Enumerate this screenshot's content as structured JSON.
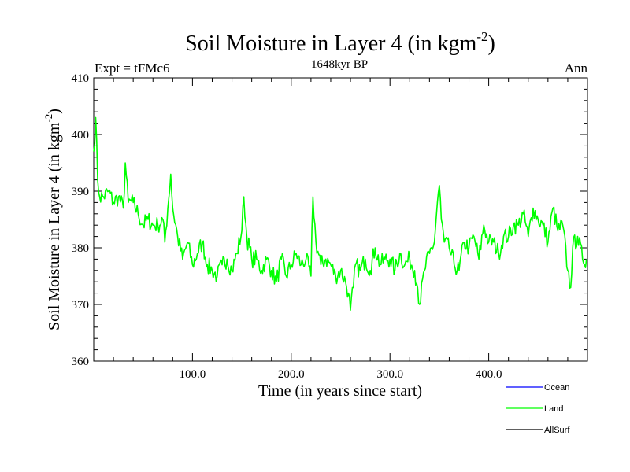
{
  "chart_data": {
    "type": "line",
    "title": "Soil Moisture in Layer 4 (in kgm",
    "title_sup": "-2",
    "title_close": ")",
    "subtitle_left": "Expt = tFMc6",
    "subtitle_center": "1648kyr BP",
    "subtitle_right": "Ann",
    "xlabel": "Time (in years since start)",
    "ylabel": "Soil Moisture in Layer 4 (in kgm",
    "ylabel_sup": "-2",
    "ylabel_close": ")",
    "xlim": [
      0,
      500
    ],
    "ylim": [
      360,
      410
    ],
    "x_ticks": [
      100,
      200,
      300,
      400
    ],
    "x_tick_labels": [
      "100.0",
      "200.0",
      "300.0",
      "400.0"
    ],
    "y_ticks": [
      360,
      370,
      380,
      390,
      400,
      410
    ],
    "y_tick_labels": [
      "360",
      "370",
      "380",
      "390",
      "400",
      "410"
    ],
    "legend": [
      {
        "name": "Ocean",
        "color": "#0000ff"
      },
      {
        "name": "Land",
        "color": "#00ff00"
      },
      {
        "name": "AllSurf",
        "color": "#000000"
      }
    ],
    "series": [
      {
        "name": "Land",
        "color": "#00ff00",
        "x": [
          0,
          2,
          4,
          6,
          10,
          15,
          20,
          25,
          30,
          32,
          35,
          40,
          45,
          50,
          55,
          60,
          65,
          70,
          72,
          75,
          78,
          80,
          85,
          90,
          95,
          100,
          105,
          110,
          115,
          120,
          125,
          130,
          135,
          140,
          145,
          150,
          152,
          155,
          160,
          165,
          170,
          175,
          180,
          185,
          190,
          195,
          200,
          205,
          210,
          215,
          220,
          222,
          225,
          230,
          235,
          240,
          245,
          250,
          255,
          258,
          260,
          263,
          265,
          270,
          275,
          280,
          285,
          290,
          295,
          300,
          305,
          310,
          315,
          320,
          325,
          328,
          330,
          335,
          340,
          345,
          348,
          350,
          352,
          355,
          360,
          365,
          370,
          375,
          380,
          385,
          390,
          395,
          400,
          405,
          410,
          415,
          420,
          425,
          430,
          435,
          440,
          445,
          450,
          455,
          460,
          465,
          470,
          475,
          480,
          483,
          485,
          490,
          495,
          499
        ],
        "values": [
          397,
          403,
          392,
          389,
          389,
          390,
          388,
          389,
          387,
          395,
          388,
          388,
          386,
          384,
          385,
          384,
          384,
          385,
          381,
          387,
          393,
          387,
          382,
          378,
          381,
          377,
          379,
          381,
          377,
          376,
          375,
          377,
          378,
          376,
          379,
          383,
          389,
          382,
          378,
          378,
          376,
          378,
          376,
          374,
          378,
          375,
          377,
          379,
          377,
          378,
          375,
          389,
          381,
          377,
          378,
          377,
          375,
          376,
          374,
          372,
          369,
          373,
          377,
          376,
          378,
          376,
          380,
          377,
          378,
          378,
          376,
          379,
          377,
          378,
          376,
          373,
          370,
          376,
          379,
          381,
          388,
          391,
          385,
          381,
          380,
          377,
          376,
          381,
          380,
          382,
          378,
          384,
          381,
          381,
          379,
          382,
          382,
          384,
          384,
          386,
          382,
          387,
          385,
          384,
          381,
          387,
          383,
          384,
          376,
          373,
          380,
          382,
          378,
          378
        ]
      }
    ]
  }
}
